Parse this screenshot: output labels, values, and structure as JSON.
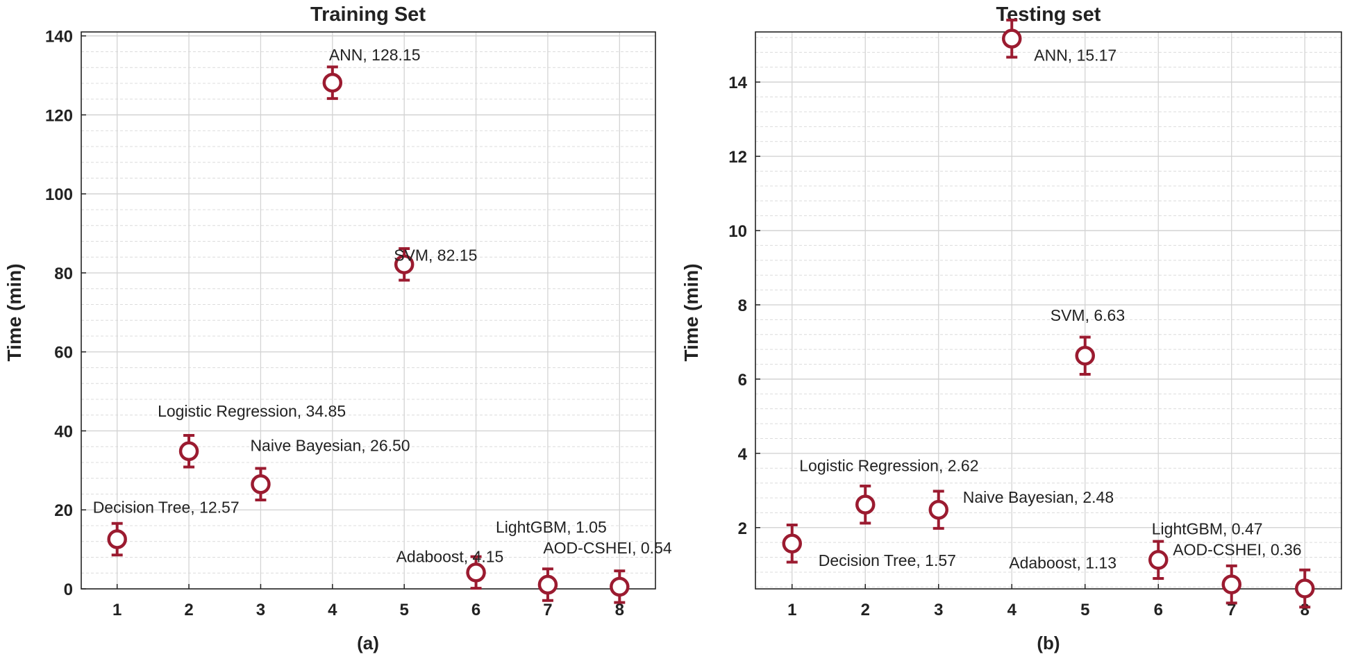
{
  "chart_data": [
    {
      "type": "scatter",
      "title": "Training Set",
      "panel_label": "(a)",
      "xlabel": "",
      "ylabel": "Time (min)",
      "xlim": [
        0.5,
        8.5
      ],
      "ylim": [
        0,
        141
      ],
      "x_ticks": [
        1,
        2,
        3,
        4,
        5,
        6,
        7,
        8
      ],
      "y_ticks": [
        0,
        20,
        40,
        60,
        80,
        100,
        120,
        140
      ],
      "grid": true,
      "marker_color": "#9b1b30",
      "points": [
        {
          "x": 1,
          "y": 12.57,
          "err": 4,
          "label": "Decision Tree, 12.57"
        },
        {
          "x": 2,
          "y": 34.85,
          "err": 4,
          "label": "Logistic Regression, 34.85"
        },
        {
          "x": 3,
          "y": 26.5,
          "err": 4,
          "label": "Naive Bayesian, 26.50"
        },
        {
          "x": 4,
          "y": 128.15,
          "err": 4,
          "label": "ANN, 128.15"
        },
        {
          "x": 5,
          "y": 82.15,
          "err": 4,
          "label": "SVM, 82.15"
        },
        {
          "x": 6,
          "y": 4.15,
          "err": 4,
          "label": "Adaboost, 4.15"
        },
        {
          "x": 7,
          "y": 1.05,
          "err": 4,
          "label": "LightGBM, 1.05"
        },
        {
          "x": 8,
          "y": 0.54,
          "err": 4,
          "label": "AOD-CSHEI, 0.54"
        }
      ]
    },
    {
      "type": "scatter",
      "title": "Testing set",
      "panel_label": "(b)",
      "xlabel": "",
      "ylabel": "Time (min)",
      "xlim": [
        0.5,
        8.5
      ],
      "ylim": [
        0.35,
        15.35
      ],
      "x_ticks": [
        1,
        2,
        3,
        4,
        5,
        6,
        7,
        8
      ],
      "y_ticks": [
        2,
        4,
        6,
        8,
        10,
        12,
        14
      ],
      "grid": true,
      "marker_color": "#9b1b30",
      "points": [
        {
          "x": 1,
          "y": 1.57,
          "err": 0.5,
          "label": "Decision Tree, 1.57"
        },
        {
          "x": 2,
          "y": 2.62,
          "err": 0.5,
          "label": "Logistic Regression, 2.62"
        },
        {
          "x": 3,
          "y": 2.48,
          "err": 0.5,
          "label": "Naive Bayesian, 2.48"
        },
        {
          "x": 4,
          "y": 15.17,
          "err": 0.5,
          "label": "ANN, 15.17"
        },
        {
          "x": 5,
          "y": 6.63,
          "err": 0.5,
          "label": "SVM, 6.63"
        },
        {
          "x": 6,
          "y": 1.13,
          "err": 0.5,
          "label": "Adaboost, 1.13"
        },
        {
          "x": 7,
          "y": 0.47,
          "err": 0.5,
          "label": "LightGBM, 0.47"
        },
        {
          "x": 8,
          "y": 0.36,
          "err": 0.5,
          "label": "AOD-CSHEI, 0.36"
        }
      ]
    }
  ]
}
